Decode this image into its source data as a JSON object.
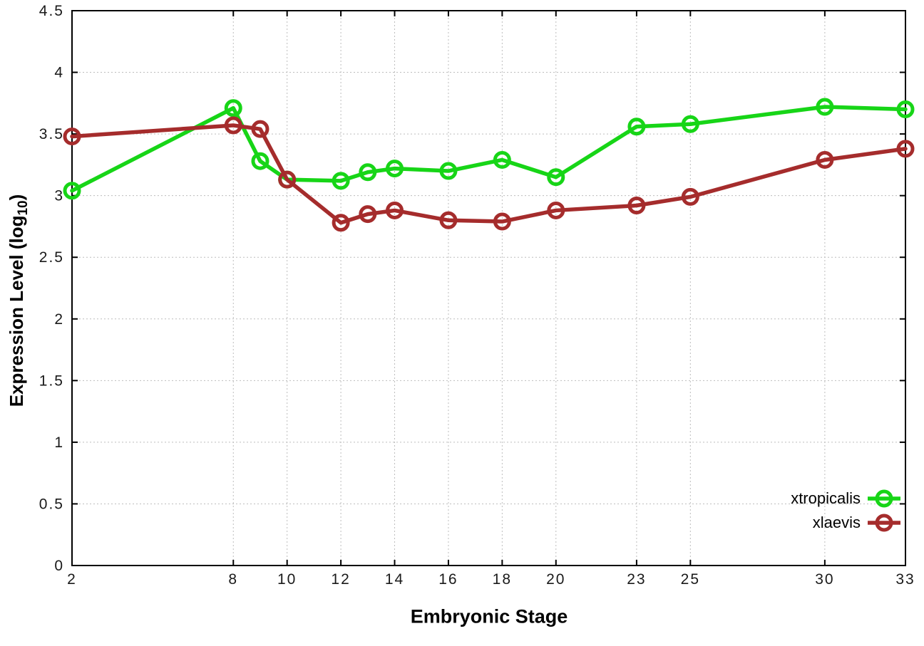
{
  "chart_data": {
    "type": "line",
    "title": "",
    "xlabel": "Embryonic Stage",
    "ylabel": "Expression Level (log10)",
    "ylabel_parts": {
      "prefix": "Expression Level (log",
      "sub": "10",
      "suffix": ")"
    },
    "xlim": [
      2,
      33
    ],
    "ylim": [
      0,
      4.5
    ],
    "xticks": [
      2,
      8,
      10,
      12,
      14,
      16,
      18,
      20,
      23,
      25,
      30,
      33
    ],
    "yticks": [
      "0",
      "0.5",
      "1",
      "1.5",
      "2",
      "2.5",
      "3",
      "3.5",
      "4",
      "4.5"
    ],
    "grid": true,
    "grid_style": "dotted",
    "legend_position": "bottom-right-inside",
    "x": [
      2,
      8,
      9,
      10,
      12,
      13,
      14,
      16,
      18,
      20,
      23,
      25,
      30,
      33
    ],
    "series": [
      {
        "name": "xtropicalis",
        "color": "#17d517",
        "values": [
          3.04,
          3.71,
          3.28,
          3.13,
          3.12,
          3.19,
          3.22,
          3.2,
          3.29,
          3.15,
          3.56,
          3.58,
          3.72,
          3.7
        ]
      },
      {
        "name": "xlaevis",
        "color": "#a52c2c",
        "values": [
          3.48,
          3.57,
          3.54,
          3.13,
          2.78,
          2.85,
          2.88,
          2.8,
          2.79,
          2.88,
          2.92,
          2.99,
          3.29,
          3.38
        ]
      }
    ],
    "colors": {
      "border": "#000000",
      "grid": "#bdbdbd",
      "tick_text": "#1a1a1a"
    }
  }
}
